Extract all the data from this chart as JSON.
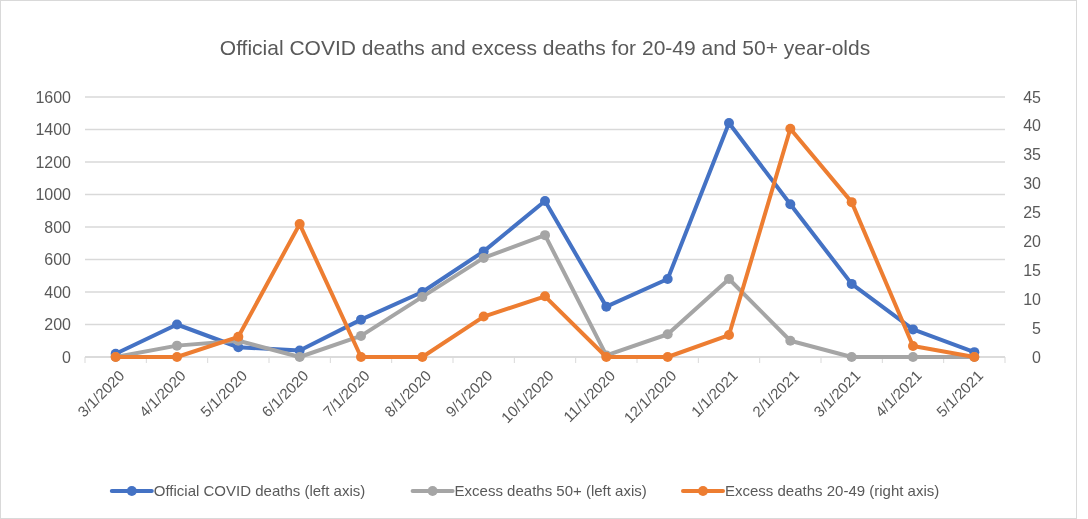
{
  "chart_data": {
    "type": "line",
    "title": "Official COVID deaths and excess deaths for 20-49 and 50+ year-olds",
    "categories": [
      "3/1/2020",
      "4/1/2020",
      "5/1/2020",
      "6/1/2020",
      "7/1/2020",
      "8/1/2020",
      "9/1/2020",
      "10/1/2020",
      "11/1/2020",
      "12/1/2020",
      "1/1/2021",
      "2/1/2021",
      "3/1/2021",
      "4/1/2021",
      "5/1/2021"
    ],
    "series": [
      {
        "name": "Official COVID deaths (left axis)",
        "color": "#4472c4",
        "values": [
          20,
          200,
          60,
          40,
          230,
          400,
          650,
          960,
          310,
          480,
          1440,
          940,
          450,
          170,
          30
        ]
      },
      {
        "name": "Excess deaths 50+ (left axis)",
        "color": "#a5a5a5",
        "values": [
          0,
          70,
          100,
          0,
          130,
          370,
          610,
          750,
          10,
          140,
          480,
          100,
          0,
          0,
          0
        ]
      },
      {
        "name": "Excess deaths 20-49 (right axis)",
        "color": "#ed7d31",
        "axis": "y2",
        "values": [
          0,
          0,
          3.5,
          23,
          0,
          0,
          7,
          10.5,
          0,
          0,
          3.8,
          39.5,
          26.8,
          1.9,
          0
        ]
      }
    ],
    "ylim": [
      0,
      1600
    ],
    "yticks": [
      0,
      200,
      400,
      600,
      800,
      1000,
      1200,
      1400,
      1600
    ],
    "y2lim": [
      0,
      45
    ],
    "y2ticks": [
      0,
      5,
      10,
      15,
      20,
      25,
      30,
      35,
      40,
      45
    ],
    "grid": "y",
    "legend": "bottom",
    "marker": "circle",
    "line_style": "solid"
  }
}
